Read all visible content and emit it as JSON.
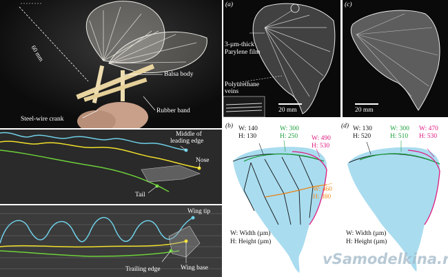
{
  "photo": {
    "dimension": "60 mm",
    "balsa_body": "Balsa body",
    "rubber_band": "Rubber band",
    "steel_crank": "Steel-wire crank"
  },
  "track_head": {
    "middle_edge_line1": "Middle of",
    "middle_edge_line2": "leading edge",
    "nose": "Nose",
    "tail": "Tail"
  },
  "track_wing": {
    "wing_tip": "Wing tip",
    "trailing_edge": "Trailing edge",
    "wing_base": "Wing base"
  },
  "panel_a": {
    "tag": "(a)",
    "film_line1": "3-µm-thick",
    "film_line2": "Parylene film",
    "veins_line1": "Polyurethane",
    "veins_line2": "veins",
    "scale": "20 mm"
  },
  "panel_c": {
    "tag": "(c)",
    "scale": "20 mm"
  },
  "panel_b": {
    "tag": "(b)",
    "m1_w": "W: 140",
    "m1_h": "H: 130",
    "m2_w": "W: 300",
    "m2_h": "H: 250",
    "m3_w": "W: 490",
    "m3_h": "H: 530",
    "m4_w": "W: 460",
    "m4_h": "H: 380",
    "legend_w": "W: Width (µm)",
    "legend_h": "H:  Height (µm)"
  },
  "panel_d": {
    "tag": "(d)",
    "m1_w": "W: 130",
    "m1_h": "H: 520",
    "m2_w": "W: 300",
    "m2_h": "H: 510",
    "m3_w": "W: 470",
    "m3_h": "H: 530",
    "legend_w": "W: Width (µm)",
    "legend_h": "H:  Height (µm)"
  },
  "watermark": "vSamodelkina.ru",
  "colors": {
    "wing_fill": "#a9dcef",
    "green": "#1a9e3a",
    "magenta": "#e0177f",
    "orange": "#f08a1c",
    "cyan_track": "#6fd0e8",
    "yellow_track": "#f2e02a",
    "green_track": "#6ed23a"
  }
}
